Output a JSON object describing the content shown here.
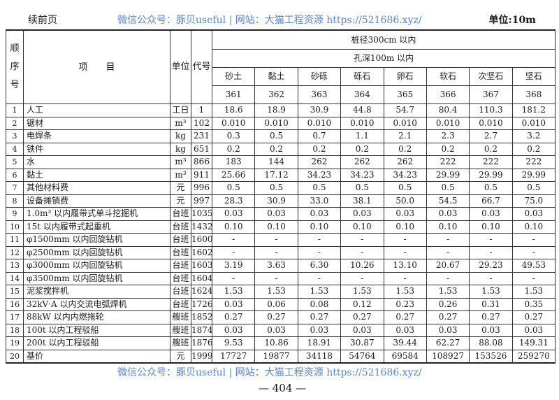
{
  "header": {
    "continued": "续前页",
    "watermark": "微信公众号：豚贝useful | 网站：大猫工程资源 https://521686.xyz/",
    "unit": "单位:10m"
  },
  "table": {
    "col_seq": "顺序号",
    "col_item": "项　　目",
    "col_unit": "单位",
    "col_code": "代号",
    "group1": "桩径300cm 以内",
    "group2": "孔深100m 以内",
    "soil_types": [
      "砂土",
      "黏土",
      "砂砾",
      "砾石",
      "卵石",
      "软石",
      "次坚石",
      "坚石"
    ],
    "codes": [
      "361",
      "362",
      "363",
      "364",
      "365",
      "366",
      "367",
      "368"
    ],
    "rows": [
      {
        "seq": "1",
        "item": "人工",
        "unit": "工日",
        "code": "1",
        "values": [
          "18.6",
          "18.9",
          "30.9",
          "44.8",
          "54.7",
          "80.4",
          "110.3",
          "181.2"
        ]
      },
      {
        "seq": "2",
        "item": "锯材",
        "unit": "m³",
        "code": "102",
        "values": [
          "0.010",
          "0.010",
          "0.010",
          "0.010",
          "0.010",
          "0.010",
          "0.010",
          "0.010"
        ]
      },
      {
        "seq": "3",
        "item": "电焊条",
        "unit": "kg",
        "code": "231",
        "values": [
          "0.3",
          "0.5",
          "0.7",
          "1.1",
          "2.1",
          "2.3",
          "2.7",
          "3.2"
        ]
      },
      {
        "seq": "4",
        "item": "铁件",
        "unit": "kg",
        "code": "651",
        "values": [
          "0.2",
          "0.2",
          "0.2",
          "0.2",
          "0.2",
          "0.2",
          "0.2",
          "0.2"
        ]
      },
      {
        "seq": "5",
        "item": "水",
        "unit": "m³",
        "code": "866",
        "values": [
          "183",
          "144",
          "262",
          "262",
          "262",
          "222",
          "222",
          "222"
        ]
      },
      {
        "seq": "6",
        "item": "黏土",
        "unit": "m³",
        "code": "911",
        "values": [
          "25.66",
          "17.12",
          "34.23",
          "34.23",
          "34.23",
          "29.99",
          "29.99",
          "29.99"
        ]
      },
      {
        "seq": "7",
        "item": "其他材料费",
        "unit": "元",
        "code": "996",
        "values": [
          "0.5",
          "0.5",
          "0.5",
          "0.5",
          "0.5",
          "0.5",
          "0.5",
          "0.5"
        ]
      },
      {
        "seq": "8",
        "item": "设备摊销费",
        "unit": "元",
        "code": "997",
        "values": [
          "28.3",
          "30.9",
          "33.0",
          "38.1",
          "50.0",
          "54.5",
          "66.7",
          "75.0"
        ]
      },
      {
        "seq": "9",
        "item": "1.0m³ 以内履带式单斗挖掘机",
        "unit": "台班",
        "code": "1035",
        "values": [
          "0.03",
          "0.03",
          "0.03",
          "0.03",
          "0.03",
          "0.03",
          "0.03",
          "0.03"
        ]
      },
      {
        "seq": "10",
        "item": "15t 以内履带式起重机",
        "unit": "台班",
        "code": "1432",
        "values": [
          "0.10",
          "0.10",
          "0.10",
          "0.10",
          "0.10",
          "0.10",
          "0.10",
          "0.10"
        ]
      },
      {
        "seq": "11",
        "item": "φ1500mm 以内回旋钻机",
        "unit": "台班",
        "code": "1600",
        "values": [
          "-",
          "-",
          "-",
          "-",
          "-",
          "-",
          "-",
          "-"
        ]
      },
      {
        "seq": "12",
        "item": "φ2500mm 以内回旋钻机",
        "unit": "台班",
        "code": "1602",
        "values": [
          "-",
          "-",
          "-",
          "-",
          "-",
          "-",
          "-",
          "-"
        ]
      },
      {
        "seq": "13",
        "item": "φ3000mm 以内回旋钻机",
        "unit": "台班",
        "code": "1603",
        "values": [
          "3.19",
          "3.63",
          "6.30",
          "10.26",
          "13.10",
          "20.67",
          "29.23",
          "49.53"
        ]
      },
      {
        "seq": "14",
        "item": "φ3500mm 以内回旋钻机",
        "unit": "台班",
        "code": "1604",
        "values": [
          "-",
          "-",
          "-",
          "-",
          "-",
          "-",
          "-",
          "-"
        ]
      },
      {
        "seq": "15",
        "item": "泥浆搅拌机",
        "unit": "台班",
        "code": "1624",
        "values": [
          "1.53",
          "1.53",
          "1.53",
          "1.53",
          "1.53",
          "1.53",
          "1.53",
          "1.53"
        ]
      },
      {
        "seq": "16",
        "item": "32kV·A 以内交流电弧焊机",
        "unit": "台班",
        "code": "1726",
        "values": [
          "0.03",
          "0.06",
          "0.08",
          "0.12",
          "0.23",
          "0.26",
          "0.31",
          "0.35"
        ]
      },
      {
        "seq": "17",
        "item": "88kW 以内内燃拖轮",
        "unit": "艘班",
        "code": "1852",
        "values": [
          "0.27",
          "0.27",
          "0.27",
          "0.27",
          "0.27",
          "0.27",
          "0.27",
          "0.27"
        ]
      },
      {
        "seq": "18",
        "item": "100t 以内工程驳船",
        "unit": "艘班",
        "code": "1874",
        "values": [
          "0.03",
          "0.03",
          "0.03",
          "0.03",
          "0.03",
          "0.03",
          "0.03",
          "0.03"
        ]
      },
      {
        "seq": "19",
        "item": "200t 以内工程驳船",
        "unit": "艘班",
        "code": "1876",
        "values": [
          "9.53",
          "10.86",
          "18.91",
          "30.87",
          "39.44",
          "62.27",
          "88.08",
          "149.31"
        ]
      },
      {
        "seq": "20",
        "item": "基价",
        "unit": "元",
        "code": "1999",
        "values": [
          "17727",
          "19877",
          "34118",
          "54764",
          "69584",
          "108927",
          "153526",
          "259270"
        ]
      }
    ]
  },
  "footer": {
    "watermark": "微信公众号：豚贝useful | 网站：大猫工程资源 https://521686.xyz/",
    "page_number": "— 404 —"
  },
  "colors": {
    "watermark": "#5a86c8",
    "ink": "#1a1a1a"
  }
}
